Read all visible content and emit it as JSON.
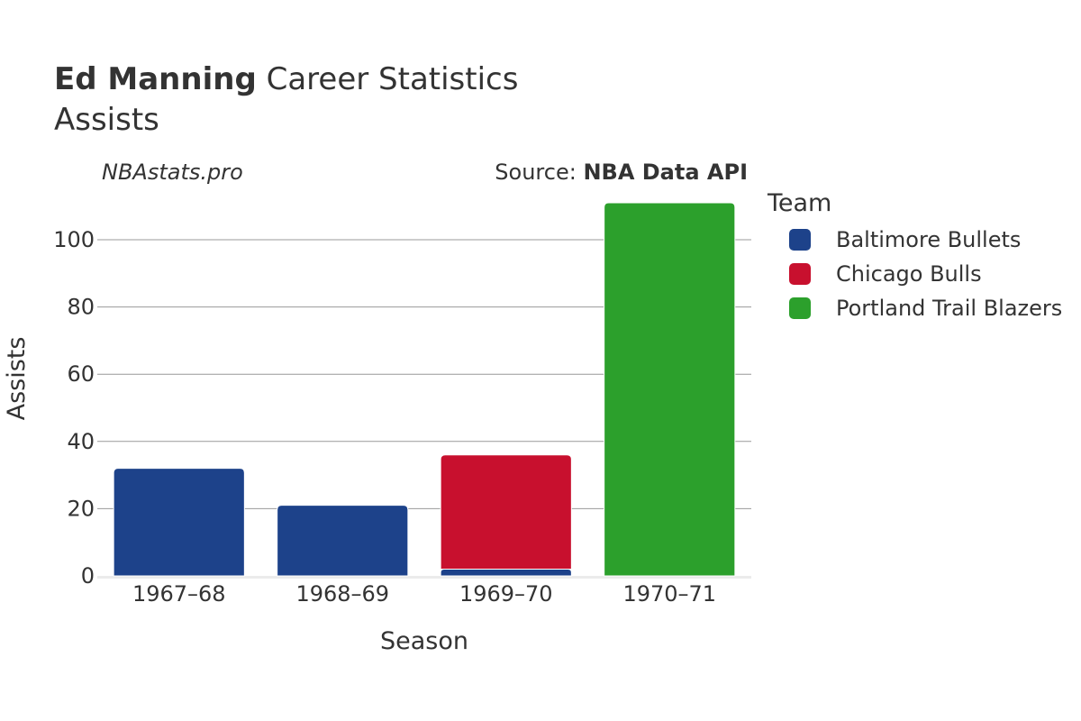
{
  "header": {
    "title_bold": "Ed Manning",
    "title_rest": " Career Statistics",
    "subtitle": "Assists",
    "watermark": "NBAstats.pro",
    "source_prefix": "Source: ",
    "source_name": "NBA Data API"
  },
  "legend": {
    "title": "Team",
    "items": [
      {
        "label": "Baltimore Bullets",
        "color": "#1d428a"
      },
      {
        "label": "Chicago Bulls",
        "color": "#c8102e"
      },
      {
        "label": "Portland Trail Blazers",
        "color": "#2ca02c"
      }
    ]
  },
  "chart_data": {
    "type": "bar",
    "stacked": true,
    "xlabel": "Season",
    "ylabel": "Assists",
    "categories": [
      "1967–68",
      "1968–69",
      "1969–70",
      "1970–71"
    ],
    "ylim": [
      0,
      111
    ],
    "yticks": [
      0,
      20,
      40,
      60,
      80,
      100
    ],
    "grid": true,
    "legend_position": "right",
    "series": [
      {
        "name": "Baltimore Bullets",
        "color": "#1d428a",
        "values": [
          32,
          21,
          2,
          0
        ]
      },
      {
        "name": "Chicago Bulls",
        "color": "#c8102e",
        "values": [
          0,
          0,
          34,
          0
        ]
      },
      {
        "name": "Portland Trail Blazers",
        "color": "#2ca02c",
        "values": [
          0,
          0,
          0,
          111
        ]
      }
    ]
  }
}
